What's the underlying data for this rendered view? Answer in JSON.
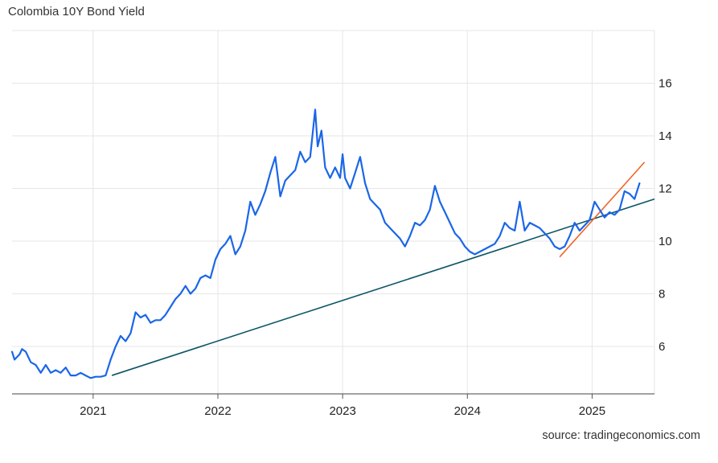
{
  "chart_data": {
    "type": "line",
    "title": "Colombia 10Y Bond Yield",
    "source": "source: tradingeconomics.com",
    "xlabel": "",
    "ylabel": "",
    "x_ticks": [
      2021,
      2022,
      2023,
      2024,
      2025
    ],
    "y_ticks": [
      6,
      8,
      10,
      12,
      14,
      16
    ],
    "xlim": [
      2020.35,
      2025.5
    ],
    "ylim": [
      4.2,
      18.0
    ],
    "grid": true,
    "y_axis_side": "right",
    "colors": {
      "series": "#1a66e8",
      "long_trend": "#0b5566",
      "short_trend": "#f06529",
      "grid": "#e6e6e6"
    },
    "series": [
      {
        "name": "",
        "x": [
          2020.35,
          2020.37,
          2020.41,
          2020.43,
          2020.46,
          2020.5,
          2020.54,
          2020.58,
          2020.62,
          2020.66,
          2020.7,
          2020.74,
          2020.78,
          2020.82,
          2020.86,
          2020.9,
          2020.94,
          2020.98,
          2021.02,
          2021.06,
          2021.1,
          2021.14,
          2021.18,
          2021.22,
          2021.26,
          2021.3,
          2021.34,
          2021.38,
          2021.42,
          2021.46,
          2021.5,
          2021.54,
          2021.58,
          2021.62,
          2021.66,
          2021.7,
          2021.74,
          2021.78,
          2021.82,
          2021.86,
          2021.9,
          2021.94,
          2021.98,
          2022.02,
          2022.06,
          2022.1,
          2022.14,
          2022.18,
          2022.22,
          2022.26,
          2022.3,
          2022.34,
          2022.38,
          2022.42,
          2022.46,
          2022.5,
          2022.54,
          2022.58,
          2022.62,
          2022.66,
          2022.7,
          2022.74,
          2022.78,
          2022.8,
          2022.83,
          2022.86,
          2022.9,
          2022.94,
          2022.98,
          2023.0,
          2023.02,
          2023.06,
          2023.1,
          2023.14,
          2023.18,
          2023.22,
          2023.26,
          2023.3,
          2023.34,
          2023.38,
          2023.42,
          2023.46,
          2023.5,
          2023.54,
          2023.58,
          2023.62,
          2023.66,
          2023.7,
          2023.74,
          2023.78,
          2023.82,
          2023.86,
          2023.9,
          2023.94,
          2023.98,
          2024.02,
          2024.06,
          2024.1,
          2024.14,
          2024.18,
          2024.22,
          2024.26,
          2024.3,
          2024.34,
          2024.38,
          2024.42,
          2024.46,
          2024.5,
          2024.54,
          2024.58,
          2024.62,
          2024.66,
          2024.7,
          2024.74,
          2024.78,
          2024.82,
          2024.86,
          2024.9,
          2024.94,
          2024.98,
          2025.02,
          2025.06,
          2025.1,
          2025.14,
          2025.18,
          2025.22,
          2025.26,
          2025.3,
          2025.34,
          2025.38
        ],
        "values": [
          5.8,
          5.5,
          5.7,
          5.9,
          5.8,
          5.4,
          5.3,
          5.0,
          5.3,
          5.0,
          5.1,
          5.0,
          5.2,
          4.9,
          4.9,
          5.0,
          4.9,
          4.8,
          4.85,
          4.85,
          4.9,
          5.5,
          6.0,
          6.4,
          6.2,
          6.5,
          7.3,
          7.1,
          7.2,
          6.9,
          7.0,
          7.0,
          7.2,
          7.5,
          7.8,
          8.0,
          8.3,
          8.0,
          8.2,
          8.6,
          8.7,
          8.6,
          9.3,
          9.7,
          9.9,
          10.2,
          9.5,
          9.8,
          10.4,
          11.5,
          11.0,
          11.4,
          11.9,
          12.6,
          13.2,
          11.7,
          12.3,
          12.5,
          12.7,
          13.4,
          13.0,
          13.2,
          15.0,
          13.6,
          14.2,
          12.8,
          12.4,
          12.8,
          12.4,
          13.3,
          12.4,
          12.0,
          12.6,
          13.2,
          12.2,
          11.6,
          11.4,
          11.2,
          10.7,
          10.5,
          10.3,
          10.1,
          9.8,
          10.2,
          10.7,
          10.6,
          10.8,
          11.2,
          12.1,
          11.5,
          11.1,
          10.7,
          10.3,
          10.1,
          9.8,
          9.6,
          9.5,
          9.6,
          9.7,
          9.8,
          9.9,
          10.2,
          10.7,
          10.5,
          10.4,
          11.5,
          10.4,
          10.7,
          10.6,
          10.5,
          10.3,
          10.1,
          9.8,
          9.7,
          9.8,
          10.2,
          10.7,
          10.4,
          10.6,
          10.8,
          11.5,
          11.2,
          10.9,
          11.1,
          11.0,
          11.2,
          11.9,
          11.8,
          11.6,
          12.2
        ]
      }
    ],
    "trend_lines": [
      {
        "name": "",
        "x": [
          2021.15,
          2025.5
        ],
        "values": [
          4.9,
          11.6
        ]
      },
      {
        "name": "",
        "x": [
          2024.74,
          2025.42
        ],
        "values": [
          9.4,
          13.0
        ]
      }
    ]
  }
}
